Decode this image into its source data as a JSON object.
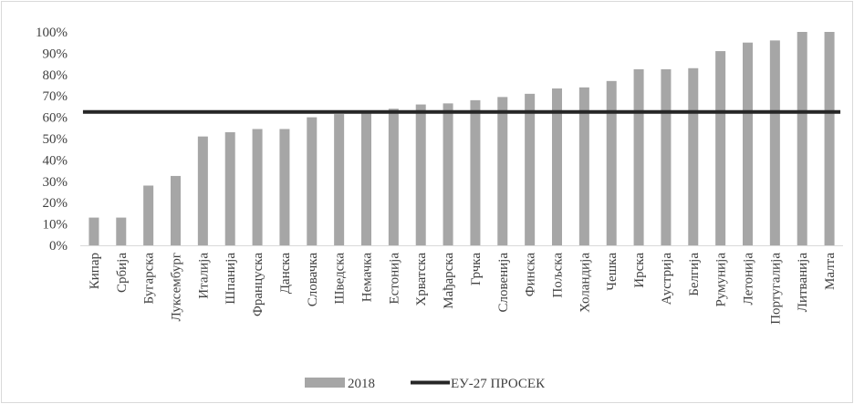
{
  "chart_data": {
    "type": "bar",
    "categories": [
      "Кипар",
      "Србија",
      "Бугарска",
      "Луксембург",
      "Италија",
      "Шпанија",
      "Француска",
      "Данска",
      "Словачка",
      "Шведска",
      "Немачка",
      "Естонија",
      "Хрватска",
      "Мађарска",
      "Грчка",
      "Словенија",
      "Финска",
      "Пољска",
      "Холандија",
      "Чешка",
      "Ирска",
      "Аустрија",
      "Белгија",
      "Румунија",
      "Летонија",
      "Португалија",
      "Литванија",
      "Малта"
    ],
    "series": [
      {
        "name": "2018",
        "color": "#a6a6a6",
        "values": [
          13,
          13,
          28,
          32.5,
          51,
          53,
          54.5,
          54.5,
          60,
          61.5,
          63,
          64,
          66,
          66.5,
          68,
          69.5,
          71,
          73.5,
          74,
          77,
          82.5,
          82.5,
          83,
          91,
          95,
          96,
          100,
          100
        ]
      },
      {
        "name": "ЕУ-27 ПРОСЕК",
        "type": "line",
        "color": "#262626",
        "value": 62.5
      }
    ],
    "yticks": [
      "0%",
      "10%",
      "20%",
      "30%",
      "40%",
      "50%",
      "60%",
      "70%",
      "80%",
      "90%",
      "100%"
    ],
    "ylim": [
      0,
      100
    ],
    "title": "",
    "xlabel": "",
    "ylabel": "",
    "grid": false,
    "legend_position": "bottom"
  }
}
